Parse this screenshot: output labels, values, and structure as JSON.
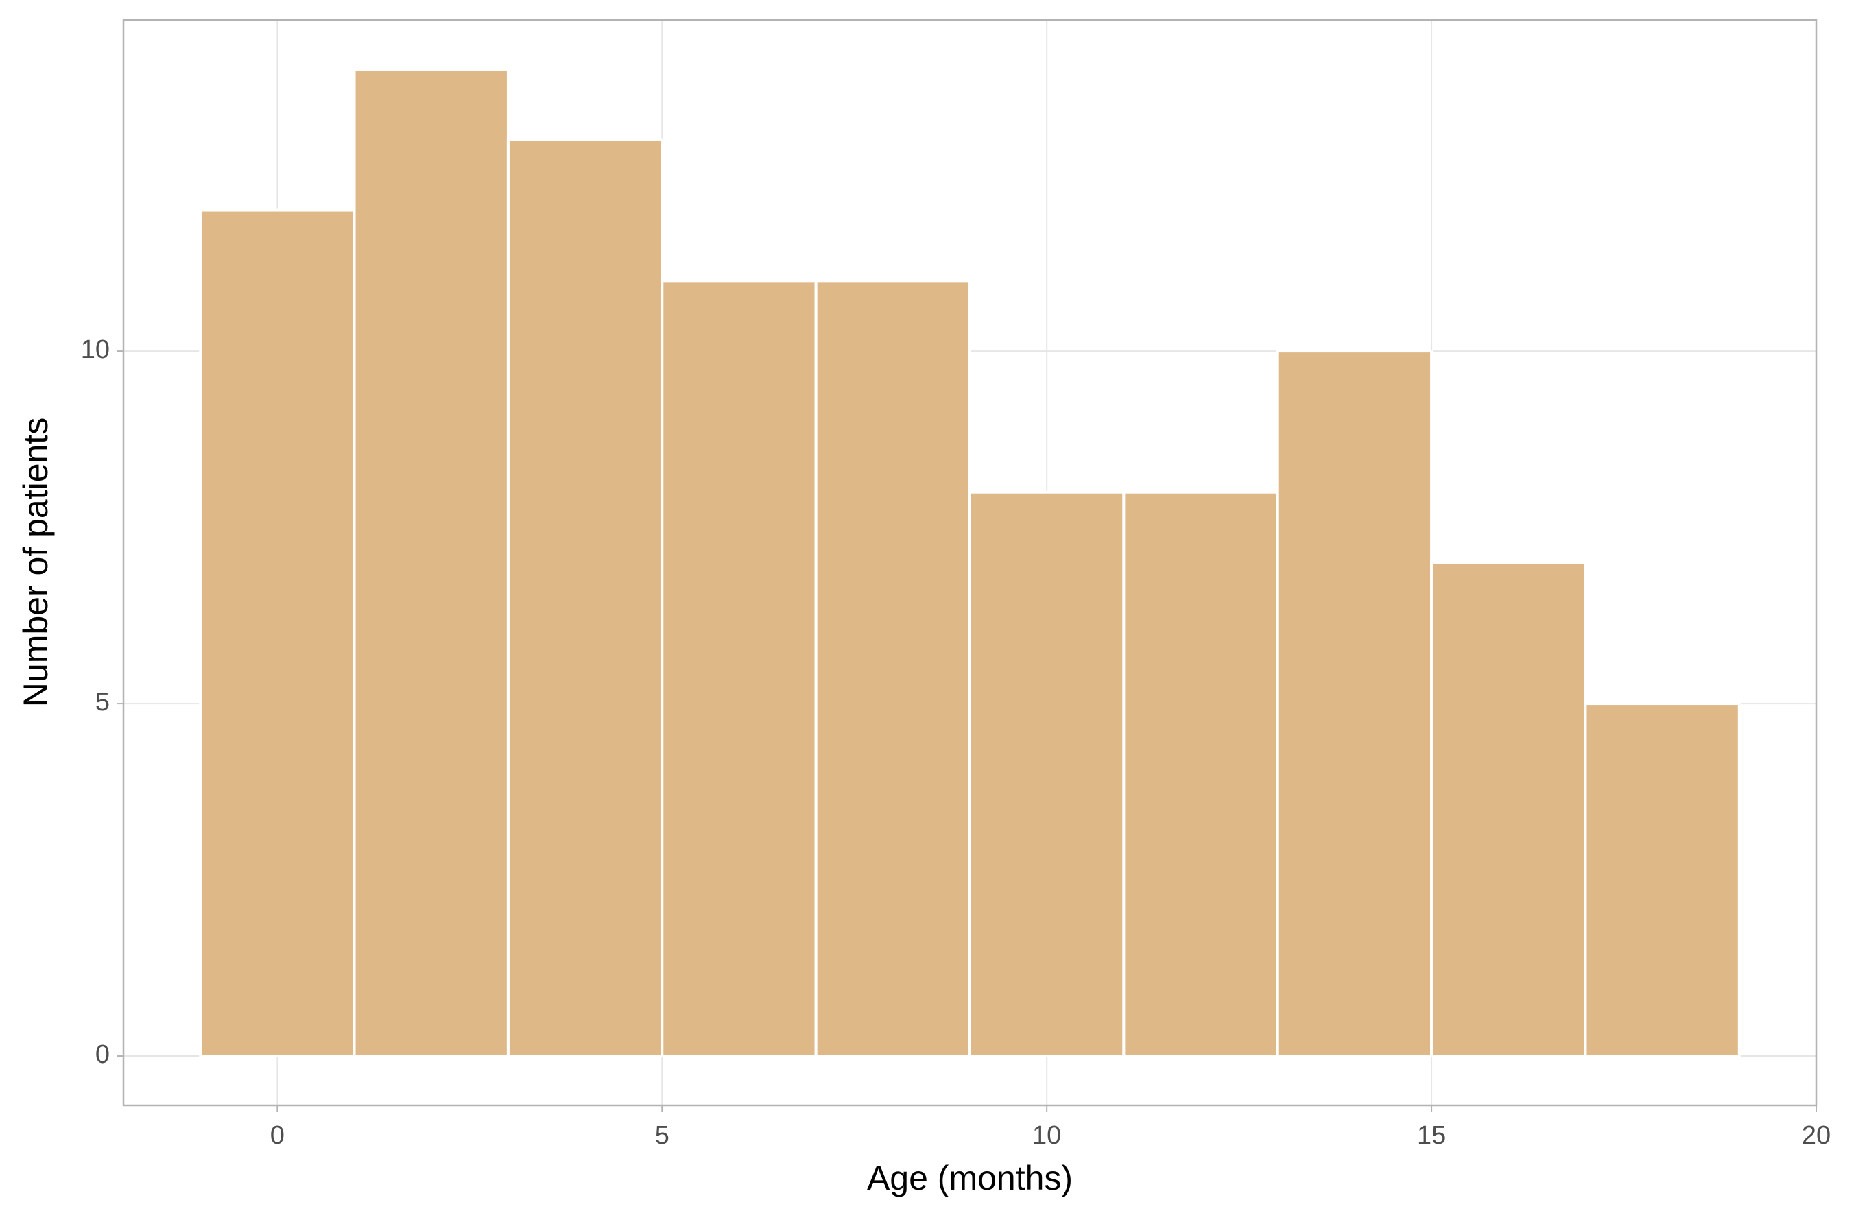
{
  "chart_data": {
    "type": "histogram",
    "x_label": "Age (months)",
    "y_label": "Number of patients",
    "bins": [
      -1,
      1,
      3,
      5,
      7,
      9,
      11,
      13,
      15,
      17,
      19
    ],
    "values": [
      12,
      14,
      13,
      11,
      11,
      8,
      8,
      10,
      7,
      5
    ],
    "color": "#deb887",
    "xlim": [
      -2,
      20
    ],
    "xticks": [
      0,
      5,
      10,
      15,
      20
    ],
    "ylim": [
      -0.7,
      14.7
    ],
    "yticks": [
      0,
      5,
      10
    ],
    "grid": true
  }
}
